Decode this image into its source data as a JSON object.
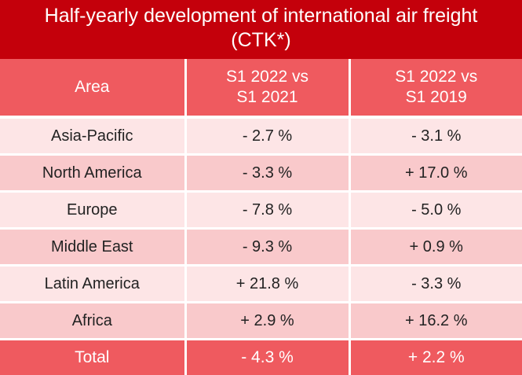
{
  "title": {
    "line1": "Half-yearly development of international air freight",
    "line2": "(CTK*)"
  },
  "headers": {
    "area": "Area",
    "col1_line1": "S1 2022 vs",
    "col1_line2": "S1 2021",
    "col2_line1": "S1 2022 vs",
    "col2_line2": "S1 2019"
  },
  "rows": [
    {
      "area": "Asia-Pacific",
      "vs2021": "- 2.7 %",
      "vs2019": " - 3.1 %"
    },
    {
      "area": "North America",
      "vs2021": "- 3.3 %",
      "vs2019": "+ 17.0 %"
    },
    {
      "area": "Europe",
      "vs2021": "- 7.8 %",
      "vs2019": "- 5.0 %"
    },
    {
      "area": "Middle East",
      "vs2021": "- 9.3 %",
      "vs2019": "+ 0.9 %"
    },
    {
      "area": "Latin America",
      "vs2021": "+ 21.8 %",
      "vs2019": "- 3.3 %"
    },
    {
      "area": "Africa",
      "vs2021": "+ 2.9 %",
      "vs2019": "+ 16.2 %"
    }
  ],
  "total": {
    "area": "Total",
    "vs2021": "- 4.3 %",
    "vs2019": "+ 2.2 %"
  },
  "colors": {
    "title_bg": "#c4000b",
    "header_bg": "#ef5a5f",
    "row_light": "#fde5e6",
    "row_dark": "#f9c9cb"
  }
}
